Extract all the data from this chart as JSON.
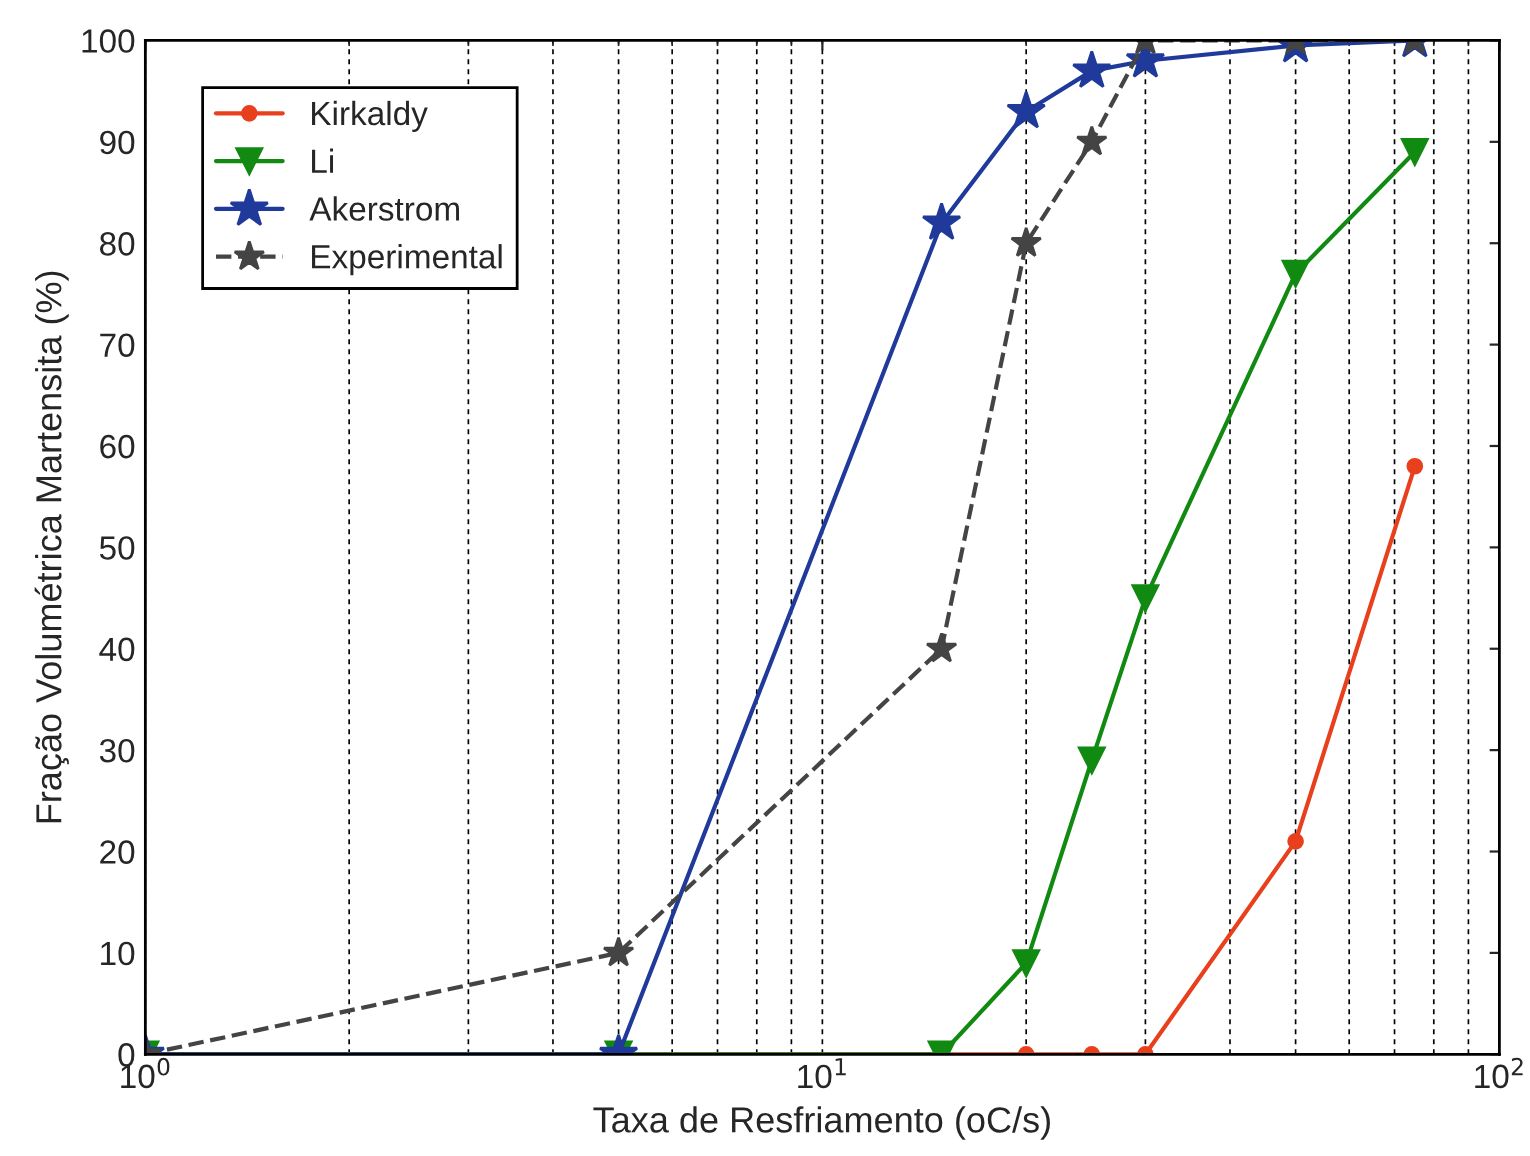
{
  "chart_data": {
    "type": "line",
    "xlabel": "Taxa de Resfriamento (oC/s)",
    "ylabel": "Fração Volumétrica Martensita (%)",
    "log": "x",
    "xlim": [
      1,
      100
    ],
    "xticks": [
      {
        "value": 1,
        "label": "10$^{0}$"
      },
      {
        "value": 10,
        "label": "10$^{1}$"
      },
      {
        "value": 100,
        "label": "10$^{2}$"
      }
    ],
    "ylim": [
      0,
      100
    ],
    "yticks": [
      0,
      10,
      20,
      30,
      40,
      50,
      60,
      70,
      80,
      90,
      100
    ],
    "grid": "x",
    "legend": "top left",
    "series": [
      {
        "name": "Kirkaldy",
        "color": "#e8401c",
        "marker": "circle",
        "line_style": "solid",
        "x": [
          1,
          5,
          15,
          20,
          25,
          30,
          50,
          75
        ],
        "values": [
          0,
          0,
          0,
          0,
          0,
          0,
          21,
          58
        ]
      },
      {
        "name": "Li",
        "color": "#118a11",
        "marker": "triangle",
        "line_style": "solid",
        "x": [
          1,
          5,
          15,
          20,
          25,
          30,
          50,
          75
        ],
        "values": [
          0,
          0,
          0,
          9,
          29,
          45,
          77,
          89
        ]
      },
      {
        "name": "Akerstrom",
        "color": "#1f3a9a",
        "marker": "star",
        "line_style": "solid",
        "x": [
          1,
          5,
          15,
          20,
          25,
          30,
          50,
          75
        ],
        "values": [
          0,
          0,
          82,
          93,
          97,
          98,
          99.5,
          100
        ]
      },
      {
        "name": "Experimental",
        "color": "#444444",
        "marker": "star",
        "line_style": "dashed",
        "x": [
          1,
          5,
          15,
          20,
          25,
          30,
          50,
          75
        ],
        "values": [
          0,
          10,
          40,
          80,
          90,
          100,
          100,
          100
        ]
      }
    ]
  }
}
